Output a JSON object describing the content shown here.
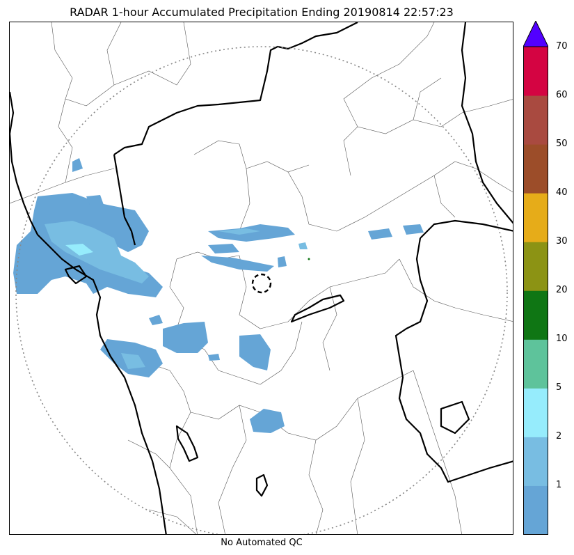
{
  "title": "RADAR 1-hour Accumulated Precipitation Ending 20190814 22:57:23",
  "caption": "No Automated QC",
  "colorbar": {
    "ticks": [
      "1",
      "2",
      "5",
      "10",
      "20",
      "30",
      "40",
      "50",
      "60",
      "70"
    ],
    "colors": [
      "#65a5d6",
      "#78bde2",
      "#96ecfc",
      "#5ec39b",
      "#0f7614",
      "#8c9314",
      "#e6ac19",
      "#9c4d29",
      "#a94a40",
      "#d40442"
    ],
    "extend_color": "#5200ff"
  },
  "colors": {
    "boundary_thin": "#555555",
    "boundary_thick": "#000000",
    "range_ring": "#888888",
    "precip_light": "#65a5d6",
    "precip_medium": "#78bde2",
    "precip_heavy": "#96ecfc"
  },
  "map": {
    "range_ring": "dotted",
    "radar_site_marker": "dashed-circle"
  }
}
